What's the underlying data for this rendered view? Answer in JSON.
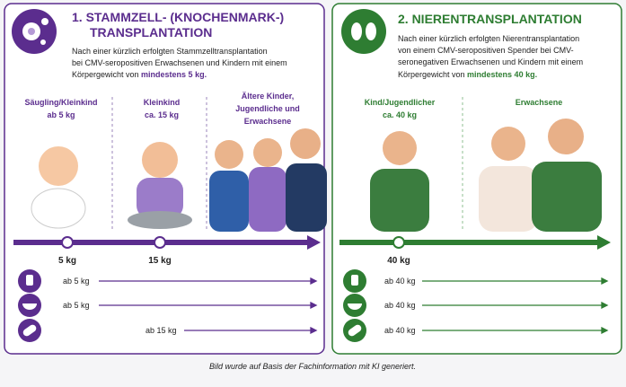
{
  "left": {
    "title": [
      "1. STAMMZELL- (KNOCHENMARK-)",
      "TRANSPLANTATION"
    ],
    "description": [
      "Nach einer kürzlich erfolgten Stammzelltransplantation",
      "bei CMV-seropositiven Erwachsenen und Kindern mit einem",
      "Körpergewicht von "
    ],
    "description_bold": "mindestens 5 kg.",
    "groups": [
      {
        "label": [
          "Säugling/Kleinkind",
          "ab 5 kg"
        ]
      },
      {
        "label": [
          "Kleinkind",
          "ca. 15 kg"
        ]
      },
      {
        "label": [
          "Ältere Kinder,",
          "Jugendliche und",
          "Erwachsene"
        ]
      }
    ],
    "markers": [
      "5 kg",
      "15 kg"
    ],
    "rows": [
      "ab 5 kg",
      "ab 5 kg",
      "ab 15 kg"
    ]
  },
  "right": {
    "title": [
      "2. NIERENTRANSPLANTATION"
    ],
    "description": [
      "Nach einer kürzlich erfolgten Nierentransplantation",
      "von einem CMV-seropositiven Spender bei CMV-",
      "seronegativen Erwachsenen und Kindern mit einem",
      "Körpergewicht von "
    ],
    "description_bold": "mindestens 40 kg.",
    "groups": [
      {
        "label": [
          "Kind/Jugendlicher",
          "ca. 40 kg"
        ]
      },
      {
        "label": [
          "Erwachsene"
        ]
      }
    ],
    "markers": [
      "40 kg"
    ],
    "rows": [
      "ab 40 kg",
      "ab 40 kg",
      "ab 40 kg"
    ]
  },
  "footer": "Bild wurde auf Basis der Fachinformation mit KI generiert."
}
